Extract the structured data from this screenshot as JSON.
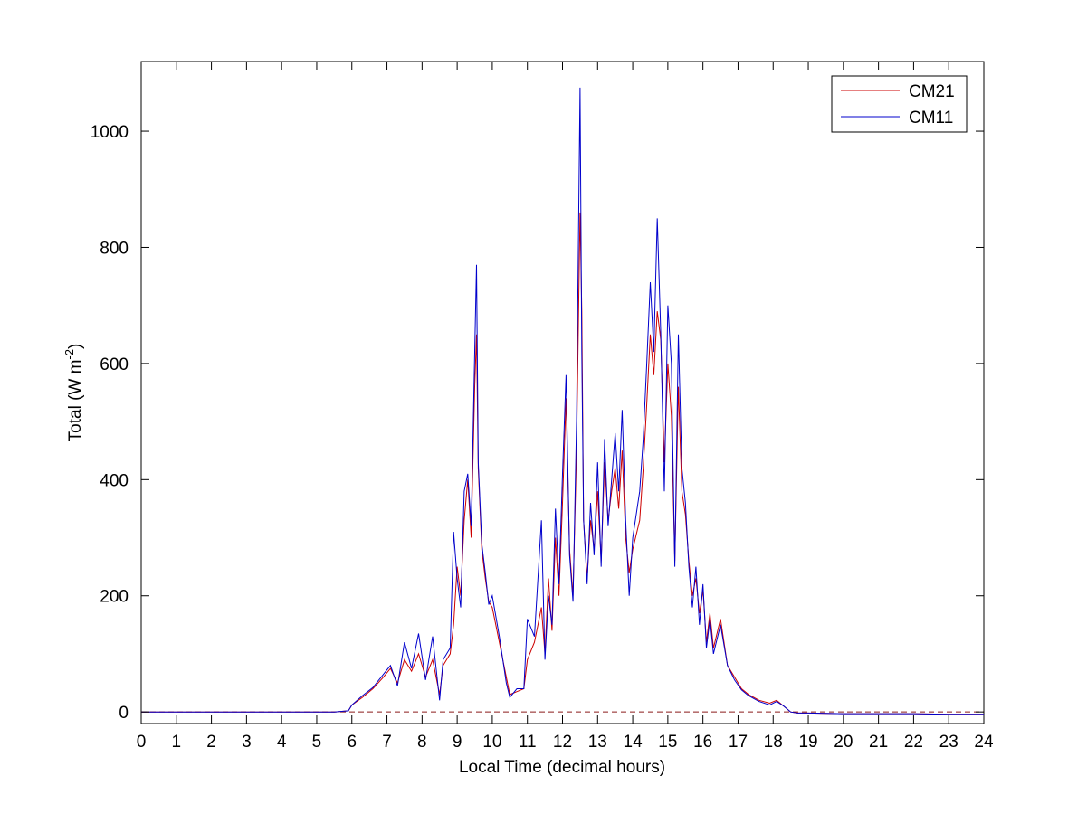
{
  "chart_data": {
    "type": "line",
    "title": "",
    "xlabel": "Local Time (decimal hours)",
    "ylabel_main": "Total (W m",
    "ylabel_sup": "-2",
    "ylabel_close": ")",
    "xlim": [
      0,
      24
    ],
    "ylim": [
      -20,
      1120
    ],
    "xticks": [
      0,
      1,
      2,
      3,
      4,
      5,
      6,
      7,
      8,
      9,
      10,
      11,
      12,
      13,
      14,
      15,
      16,
      17,
      18,
      19,
      20,
      21,
      22,
      23,
      24
    ],
    "xtick_labels": [
      "0",
      "1",
      "2",
      "3",
      "4",
      "5",
      "6",
      "7",
      "8",
      "9",
      "10",
      "11",
      "12",
      "13",
      "14",
      "15",
      "16",
      "17",
      "18",
      "19",
      "20",
      "21",
      "22",
      "23",
      "24"
    ],
    "yticks": [
      0,
      200,
      400,
      600,
      800,
      1000
    ],
    "ytick_labels": [
      "0",
      "200",
      "400",
      "600",
      "800",
      "1000"
    ],
    "grid": false,
    "legend_position": "top-right",
    "zero_line": {
      "value": 0,
      "style": "dashed",
      "color": "#8b1a1a"
    },
    "series": [
      {
        "name": "CM21",
        "color": "#cc0000",
        "x": [
          0,
          5.5,
          5.9,
          6,
          6.3,
          6.6,
          6.9,
          7.1,
          7.3,
          7.5,
          7.7,
          7.9,
          8.1,
          8.3,
          8.5,
          8.6,
          8.8,
          8.9,
          9.0,
          9.1,
          9.2,
          9.3,
          9.4,
          9.5,
          9.55,
          9.6,
          9.7,
          9.8,
          9.9,
          10.0,
          10.2,
          10.4,
          10.5,
          10.7,
          10.9,
          11.0,
          11.2,
          11.4,
          11.5,
          11.6,
          11.7,
          11.8,
          11.9,
          12.0,
          12.1,
          12.2,
          12.3,
          12.4,
          12.5,
          12.55,
          12.6,
          12.7,
          12.8,
          12.9,
          13.0,
          13.1,
          13.2,
          13.3,
          13.4,
          13.5,
          13.6,
          13.7,
          13.8,
          13.9,
          14.0,
          14.2,
          14.3,
          14.4,
          14.5,
          14.6,
          14.7,
          14.8,
          14.9,
          15.0,
          15.1,
          15.2,
          15.3,
          15.4,
          15.5,
          15.6,
          15.7,
          15.8,
          15.9,
          16.0,
          16.1,
          16.2,
          16.3,
          16.5,
          16.7,
          16.9,
          17.1,
          17.3,
          17.6,
          17.9,
          18.1,
          18.3,
          18.5,
          18.7,
          19,
          20,
          21,
          22,
          23,
          24
        ],
        "y": [
          0,
          0,
          2,
          12,
          25,
          40,
          60,
          75,
          50,
          90,
          70,
          100,
          60,
          90,
          30,
          80,
          100,
          150,
          250,
          200,
          330,
          400,
          300,
          560,
          650,
          420,
          280,
          230,
          190,
          180,
          120,
          60,
          30,
          35,
          40,
          90,
          120,
          180,
          100,
          230,
          140,
          300,
          200,
          360,
          540,
          280,
          200,
          450,
          860,
          690,
          330,
          230,
          330,
          280,
          380,
          260,
          430,
          330,
          380,
          420,
          350,
          450,
          300,
          240,
          280,
          330,
          420,
          530,
          650,
          580,
          690,
          640,
          430,
          600,
          510,
          260,
          560,
          380,
          340,
          260,
          200,
          230,
          170,
          210,
          120,
          170,
          110,
          160,
          80,
          60,
          40,
          30,
          20,
          15,
          20,
          10,
          0,
          -2,
          -2,
          -3,
          -3,
          -3,
          -4,
          -4
        ]
      },
      {
        "name": "CM11",
        "color": "#0000cc",
        "x": [
          0,
          5.5,
          5.9,
          6,
          6.3,
          6.6,
          6.9,
          7.1,
          7.3,
          7.5,
          7.7,
          7.9,
          8.1,
          8.3,
          8.5,
          8.6,
          8.8,
          8.9,
          9.0,
          9.1,
          9.2,
          9.3,
          9.4,
          9.5,
          9.55,
          9.6,
          9.7,
          9.8,
          9.9,
          10.0,
          10.2,
          10.4,
          10.5,
          10.7,
          10.9,
          11.0,
          11.2,
          11.4,
          11.5,
          11.6,
          11.7,
          11.8,
          11.9,
          12.0,
          12.1,
          12.2,
          12.3,
          12.4,
          12.5,
          12.55,
          12.6,
          12.7,
          12.8,
          12.9,
          13.0,
          13.1,
          13.2,
          13.3,
          13.4,
          13.5,
          13.6,
          13.7,
          13.8,
          13.9,
          14.0,
          14.2,
          14.3,
          14.4,
          14.5,
          14.6,
          14.7,
          14.8,
          14.9,
          15.0,
          15.1,
          15.2,
          15.3,
          15.4,
          15.5,
          15.6,
          15.7,
          15.8,
          15.9,
          16.0,
          16.1,
          16.2,
          16.3,
          16.5,
          16.7,
          16.9,
          17.1,
          17.3,
          17.6,
          17.9,
          18.1,
          18.3,
          18.5,
          18.7,
          19,
          20,
          21,
          22,
          23,
          24
        ],
        "y": [
          0,
          0,
          2,
          12,
          28,
          42,
          65,
          80,
          45,
          120,
          75,
          135,
          55,
          130,
          20,
          90,
          110,
          310,
          230,
          180,
          380,
          410,
          320,
          620,
          770,
          430,
          290,
          240,
          185,
          200,
          130,
          50,
          25,
          40,
          40,
          160,
          130,
          330,
          90,
          200,
          150,
          350,
          220,
          410,
          580,
          270,
          190,
          500,
          1075,
          620,
          330,
          220,
          360,
          270,
          430,
          250,
          470,
          320,
          400,
          480,
          380,
          520,
          330,
          200,
          300,
          380,
          470,
          600,
          740,
          620,
          850,
          650,
          380,
          700,
          600,
          250,
          650,
          420,
          360,
          250,
          180,
          250,
          150,
          220,
          110,
          160,
          100,
          150,
          80,
          55,
          38,
          28,
          18,
          12,
          18,
          10,
          0,
          -2,
          -2,
          -3,
          -3,
          -3,
          -4,
          -4
        ]
      }
    ]
  }
}
